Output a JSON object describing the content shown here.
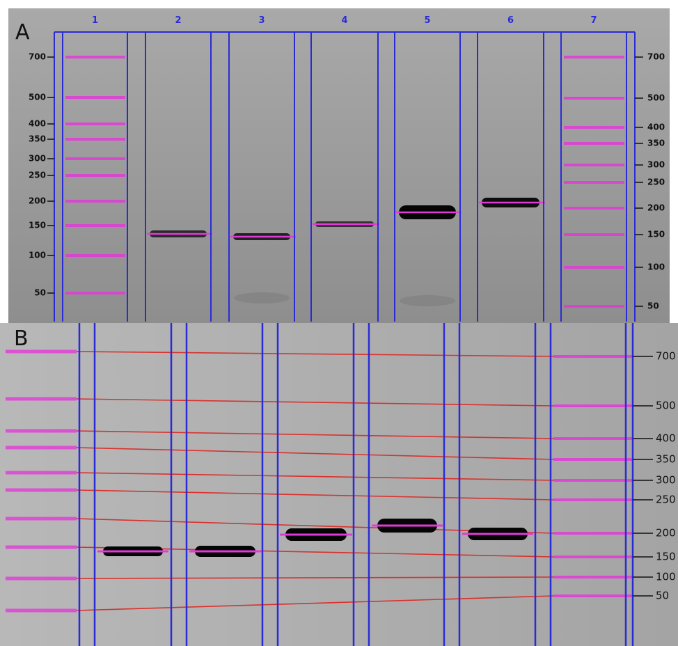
{
  "panels": [
    {
      "label": "A",
      "lanes": [
        "1",
        "2",
        "3",
        "4",
        "5",
        "6",
        "7"
      ],
      "left_sizes": [
        "700",
        "500",
        "400",
        "350",
        "300",
        "250",
        "200",
        "150",
        "100",
        "50"
      ],
      "right_sizes": [
        "700",
        "500",
        "400",
        "350",
        "300",
        "250",
        "200",
        "150",
        "100",
        "50"
      ]
    },
    {
      "label": "B",
      "right_sizes": [
        "700",
        "500",
        "400",
        "350",
        "300",
        "250",
        "200",
        "150",
        "100",
        "50"
      ]
    }
  ]
}
